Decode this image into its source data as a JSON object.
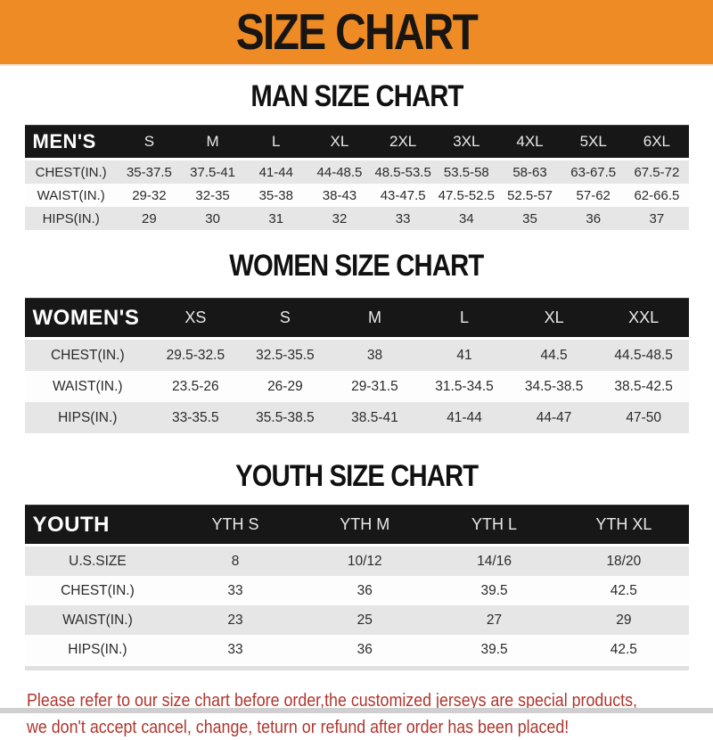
{
  "banner": {
    "title": "SIZE CHART"
  },
  "sections": [
    {
      "id": "men",
      "heading": "MAN SIZE CHART",
      "table": {
        "label": "MEN'S",
        "columns": [
          "S",
          "M",
          "L",
          "XL",
          "2XL",
          "3XL",
          "4XL",
          "5XL",
          "6XL"
        ],
        "rows": [
          {
            "label": "CHEST(IN.)",
            "values": [
              "35-37.5",
              "37.5-41",
              "41-44",
              "44-48.5",
              "48.5-53.5",
              "53.5-58",
              "58-63",
              "63-67.5",
              "67.5-72"
            ]
          },
          {
            "label": "WAIST(IN.)",
            "values": [
              "29-32",
              "32-35",
              "35-38",
              "38-43",
              "43-47.5",
              "47.5-52.5",
              "52.5-57",
              "57-62",
              "62-66.5"
            ]
          },
          {
            "label": "HIPS(IN.)",
            "values": [
              "29",
              "30",
              "31",
              "32",
              "33",
              "34",
              "35",
              "36",
              "37"
            ]
          }
        ]
      }
    },
    {
      "id": "women",
      "heading": "WOMEN SIZE CHART",
      "table": {
        "label": "WOMEN'S",
        "columns": [
          "XS",
          "S",
          "M",
          "L",
          "XL",
          "XXL"
        ],
        "rows": [
          {
            "label": "CHEST(IN.)",
            "values": [
              "29.5-32.5",
              "32.5-35.5",
              "38",
              "41",
              "44.5",
              "44.5-48.5"
            ]
          },
          {
            "label": "WAIST(IN.)",
            "values": [
              "23.5-26",
              "26-29",
              "29-31.5",
              "31.5-34.5",
              "34.5-38.5",
              "38.5-42.5"
            ]
          },
          {
            "label": "HIPS(IN.)",
            "values": [
              "33-35.5",
              "35.5-38.5",
              "38.5-41",
              "41-44",
              "44-47",
              "47-50"
            ]
          }
        ]
      }
    },
    {
      "id": "youth",
      "heading": "YOUTH SIZE CHART",
      "table": {
        "label": "YOUTH",
        "columns": [
          "YTH S",
          "YTH M",
          "YTH L",
          "YTH XL"
        ],
        "rows": [
          {
            "label": "U.S.SIZE",
            "values": [
              "8",
              "10/12",
              "14/16",
              "18/20"
            ]
          },
          {
            "label": "CHEST(IN.)",
            "values": [
              "33",
              "36",
              "39.5",
              "42.5"
            ]
          },
          {
            "label": "WAIST(IN.)",
            "values": [
              "23",
              "25",
              "27",
              "29"
            ]
          },
          {
            "label": "HIPS(IN.)",
            "values": [
              "33",
              "36",
              "39.5",
              "42.5"
            ]
          }
        ]
      }
    }
  ],
  "footer": {
    "lines": [
      "Please refer to our size chart before order,the customized jerseys are special products,",
      "we don't accept cancel, change, teturn or refund after order has been placed!"
    ]
  },
  "colors": {
    "banner_orange": "#ef8b24",
    "header_black": "#171717",
    "row_gray": "#e6e6e6",
    "row_white": "#fdfdfd",
    "footer_red": "#b0362e"
  }
}
